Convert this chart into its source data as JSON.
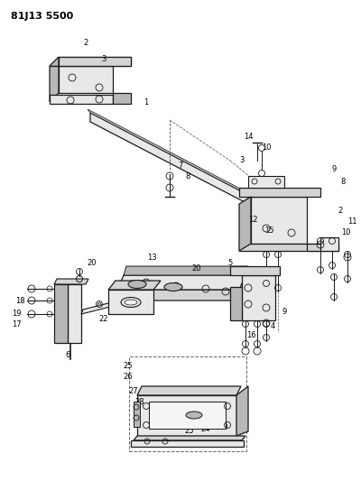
{
  "title": "81J13 5500",
  "bg_color": "#ffffff",
  "line_color": "#1a1a1a",
  "gray_fill": "#d4d4d4",
  "gray_light": "#e8e8e8",
  "gray_dark": "#b8b8b8"
}
